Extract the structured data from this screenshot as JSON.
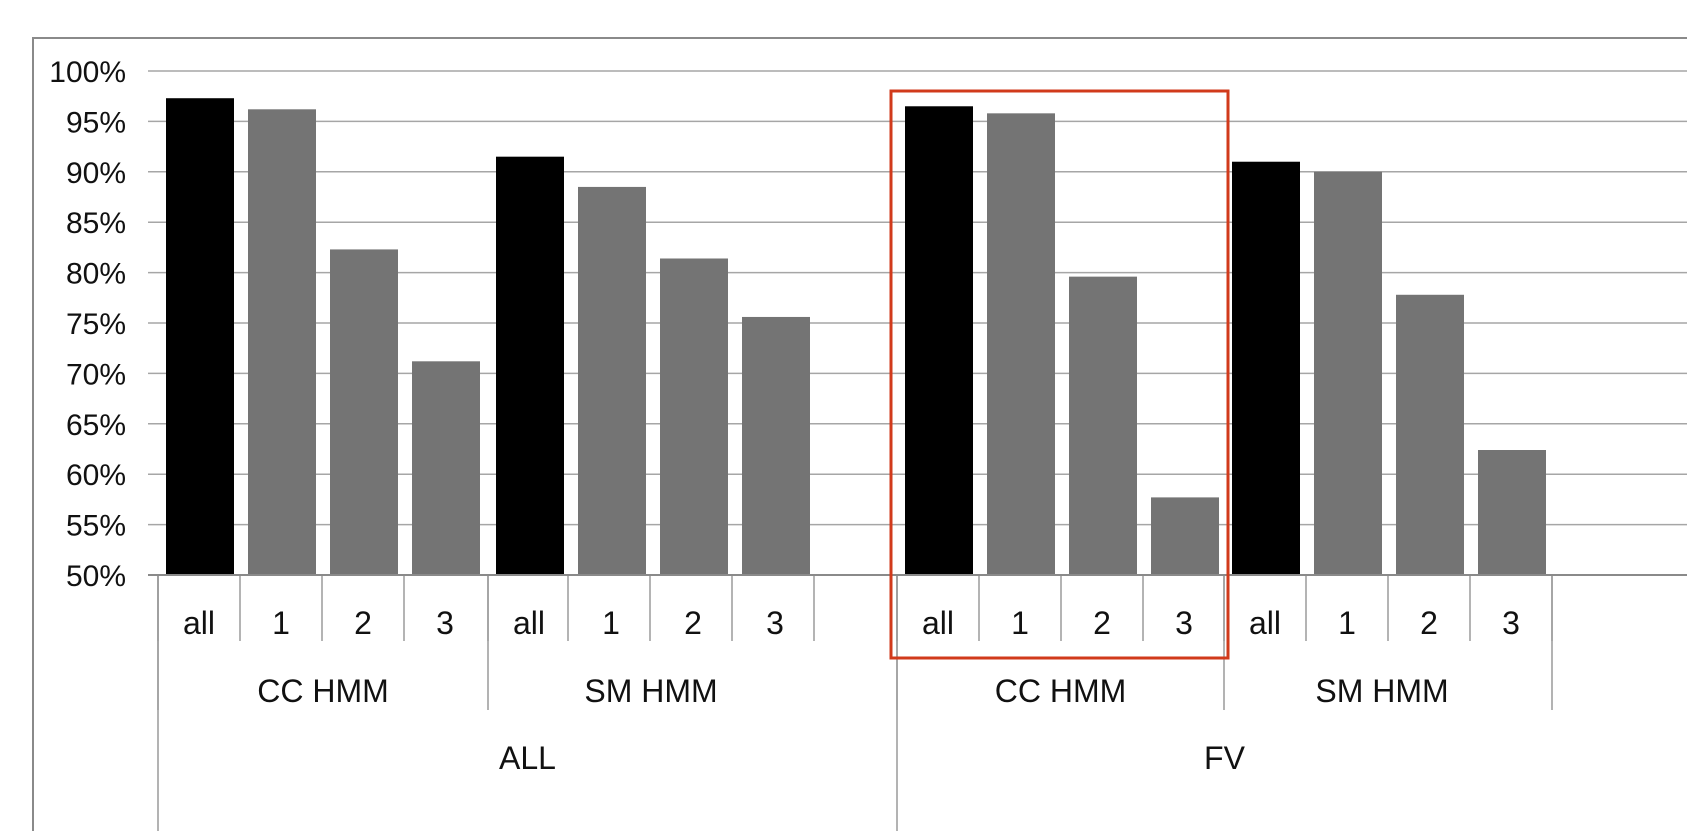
{
  "chart_data": {
    "type": "bar",
    "ylim": [
      50,
      100
    ],
    "y_ticks": [
      "50%",
      "55%",
      "60%",
      "65%",
      "70%",
      "75%",
      "80%",
      "85%",
      "90%",
      "95%",
      "100%"
    ],
    "y_tick_values": [
      50,
      55,
      60,
      65,
      70,
      75,
      80,
      85,
      90,
      95,
      100
    ],
    "grid": true,
    "colors": {
      "all": "#000000",
      "level": "#747474",
      "highlight": "#d13a1b",
      "grid": "#a6a6a6"
    },
    "groups": [
      {
        "super": "ALL",
        "subgroups": [
          {
            "label": "CC HMM",
            "categories": [
              "all",
              "1",
              "2",
              "3"
            ],
            "values": [
              97.3,
              96.2,
              82.3,
              71.2
            ]
          },
          {
            "label": "SM HMM",
            "categories": [
              "all",
              "1",
              "2",
              "3"
            ],
            "values": [
              91.5,
              88.5,
              81.4,
              75.6
            ]
          }
        ]
      },
      {
        "super": "FV",
        "subgroups": [
          {
            "label": "CC HMM",
            "categories": [
              "all",
              "1",
              "2",
              "3"
            ],
            "values": [
              96.5,
              95.8,
              79.6,
              57.7
            ],
            "highlighted": true
          },
          {
            "label": "SM HMM",
            "categories": [
              "all",
              "1",
              "2",
              "3"
            ],
            "values": [
              91.0,
              90.0,
              77.8,
              62.4
            ]
          }
        ]
      }
    ]
  }
}
